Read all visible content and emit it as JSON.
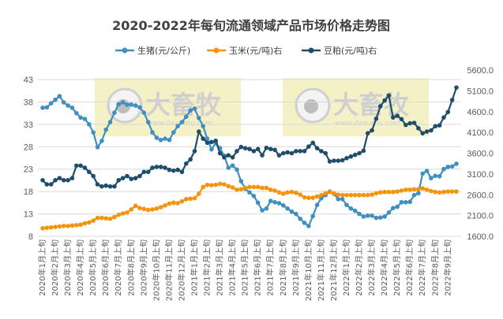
{
  "chart_data": {
    "type": "line",
    "title": "2020-2022年每旬流通领域产品市场价格走势图",
    "xlabel": "",
    "ylabel": "",
    "y_left": {
      "range": [
        8,
        43
      ],
      "ticks": [
        "8",
        "13",
        "18",
        "23",
        "28",
        "33",
        "38",
        "43"
      ]
    },
    "y_right": {
      "range": [
        1600,
        5600
      ],
      "ticks": [
        "1600.0",
        "2100.0",
        "2600.0",
        "3100.0",
        "3600.0",
        "4100.0",
        "4600.0",
        "5100.0",
        "5600.0"
      ]
    },
    "grid": true,
    "legend_position": "top",
    "x_tick_labels": [
      "2020年1月上旬",
      "2020年2月上旬",
      "2020年3月上旬",
      "2020年4月上旬",
      "2020年5月上旬",
      "2020年6月上旬",
      "2020年7月上旬",
      "2020年8月上旬",
      "2020年9月上旬",
      "2020年10月上旬",
      "2020年11月上旬",
      "2020年12月上旬",
      "2021年1月上旬",
      "2021年2月上旬",
      "2021年3月上旬",
      "2021年4月上旬",
      "2021年5月上旬",
      "2021年6月上旬",
      "2021年7月上旬",
      "2021年8月上旬",
      "2021年9月上旬",
      "2021年10月上旬",
      "2021年11月上旬",
      "2021年12月上旬",
      "2022年1月上旬",
      "2022年2月上旬",
      "2022年3月上旬",
      "2022年4月上旬",
      "2022年5月上旬",
      "2022年6月上旬",
      "2022年7月上旬",
      "2022年8月上旬",
      "2022年9月上旬"
    ],
    "series": [
      {
        "name": "生猪(元/公斤)",
        "axis": "left",
        "color": "#3f8fbf",
        "values": [
          36.7,
          36.8,
          37.7,
          38.5,
          39.3,
          37.9,
          37.2,
          36.7,
          35.5,
          34.5,
          34.2,
          33.0,
          31.2,
          27.9,
          29.3,
          31.8,
          33.5,
          35.6,
          37.5,
          37.9,
          37.4,
          37.4,
          37.2,
          36.8,
          35.6,
          33.5,
          31.2,
          30.0,
          29.5,
          29.8,
          29.5,
          31.2,
          32.6,
          33.5,
          34.7,
          36.1,
          36.5,
          34.4,
          32.6,
          29.8,
          27.4,
          28.8,
          27.7,
          26.0,
          23.3,
          23.8,
          22.9,
          20.3,
          18.6,
          17.8,
          17.0,
          15.5,
          13.8,
          14.2,
          15.9,
          15.6,
          15.4,
          14.9,
          14.2,
          13.5,
          13.0,
          11.9,
          11.0,
          10.3,
          12.5,
          15.0,
          16.5,
          17.2,
          18.0,
          17.5,
          16.3,
          16.3,
          15.0,
          14.2,
          13.7,
          13.0,
          12.4,
          12.6,
          12.6,
          12.1,
          12.2,
          12.4,
          13.3,
          14.3,
          14.6,
          15.6,
          15.6,
          15.7,
          17.2,
          17.6,
          22.0,
          22.6,
          21.0,
          21.5,
          21.4,
          23.0,
          23.5,
          23.6,
          24.2
        ]
      },
      {
        "name": "玉米(元/吨)右",
        "axis": "left",
        "color": "#f5930a",
        "values": [
          9.8,
          9.9,
          10.0,
          10.1,
          10.2,
          10.3,
          10.3,
          10.4,
          10.5,
          10.6,
          10.9,
          11.1,
          11.5,
          12.1,
          12.1,
          12.0,
          11.9,
          12.3,
          12.8,
          13.1,
          13.3,
          14.0,
          14.8,
          14.3,
          14.1,
          13.9,
          14.0,
          14.2,
          14.5,
          14.9,
          15.3,
          15.5,
          15.4,
          15.8,
          16.3,
          16.4,
          16.5,
          17.5,
          19.0,
          19.5,
          19.4,
          19.5,
          19.7,
          19.6,
          19.2,
          18.9,
          18.4,
          18.5,
          18.8,
          19.0,
          19.0,
          19.0,
          18.8,
          18.8,
          18.4,
          18.2,
          17.8,
          17.5,
          17.8,
          17.9,
          17.7,
          17.3,
          16.7,
          16.6,
          16.6,
          16.9,
          17.2,
          17.6,
          17.9,
          17.6,
          17.3,
          17.2,
          17.2,
          17.2,
          17.2,
          17.2,
          17.2,
          17.2,
          17.3,
          17.6,
          17.8,
          17.9,
          17.9,
          17.9,
          18.0,
          18.2,
          18.4,
          18.4,
          18.5,
          18.5,
          18.7,
          18.4,
          18.1,
          17.9,
          17.8,
          17.9,
          18.0,
          18.0,
          18.0
        ]
      },
      {
        "name": "豆粕(元/吨)右",
        "axis": "right",
        "color": "#1f4e6b",
        "values": [
          2950,
          2850,
          2850,
          2950,
          3000,
          2950,
          2950,
          3000,
          3300,
          3300,
          3250,
          3150,
          3050,
          2850,
          2800,
          2820,
          2800,
          2800,
          2950,
          3000,
          3050,
          2980,
          3000,
          3050,
          3150,
          3150,
          3250,
          3270,
          3270,
          3250,
          3200,
          3180,
          3200,
          3150,
          3350,
          3450,
          3650,
          4120,
          3950,
          3850,
          3870,
          3900,
          3600,
          3500,
          3550,
          3500,
          3650,
          3750,
          3720,
          3700,
          3650,
          3700,
          3550,
          3730,
          3700,
          3680,
          3550,
          3600,
          3620,
          3600,
          3650,
          3650,
          3650,
          3760,
          3850,
          3720,
          3650,
          3600,
          3400,
          3420,
          3420,
          3430,
          3480,
          3520,
          3560,
          3600,
          3660,
          4080,
          4150,
          4430,
          4730,
          4870,
          4990,
          4460,
          4500,
          4420,
          4280,
          4320,
          4330,
          4200,
          4080,
          4120,
          4150,
          4250,
          4270,
          4460,
          4590,
          4880,
          5180
        ]
      }
    ]
  },
  "watermark": {
    "brand": "大畜牧",
    "site": "www.daxumu.com"
  }
}
